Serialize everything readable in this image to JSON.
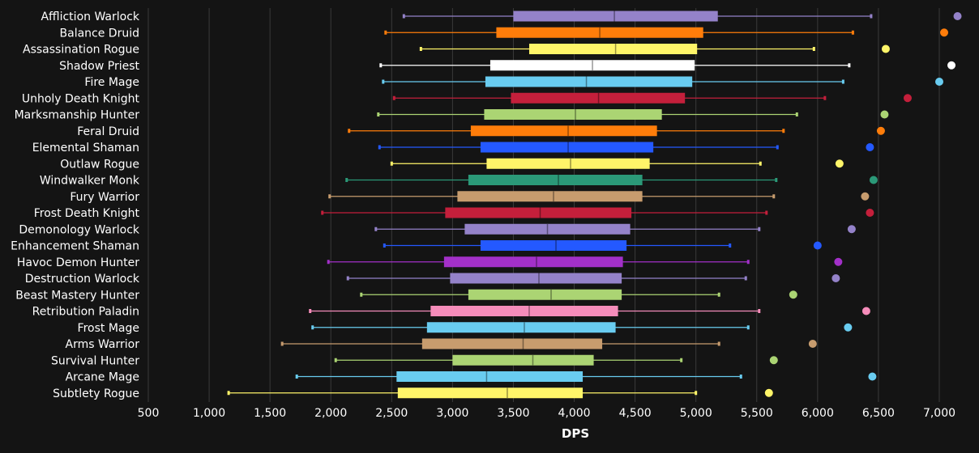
{
  "chart_data": {
    "type": "boxplot",
    "orientation": "horizontal",
    "xlabel": "DPS",
    "xlim": [
      500,
      7200
    ],
    "xticks": [
      500,
      1000,
      1500,
      2000,
      2500,
      3000,
      3500,
      4000,
      4500,
      5000,
      5500,
      6000,
      6500,
      7000
    ],
    "xtick_labels": [
      "500",
      "1,000",
      "1,500",
      "2,000",
      "2,500",
      "3,000",
      "3,500",
      "4,000",
      "4,500",
      "5,000",
      "5,500",
      "6,000",
      "6,500",
      "7,000"
    ],
    "grid": "vertical",
    "colors": {
      "background": "#141414",
      "grid": "#3a3a3a",
      "text": "#ffffff"
    },
    "series": [
      {
        "name": "Affliction Warlock",
        "color": "#9482C9",
        "min": 2600,
        "q1": 3500,
        "median": 4330,
        "q3": 5180,
        "max": 6440,
        "outlier": 7150
      },
      {
        "name": "Balance Druid",
        "color": "#FF7D0A",
        "min": 2450,
        "q1": 3360,
        "median": 4210,
        "q3": 5060,
        "max": 6290,
        "outlier": 7040
      },
      {
        "name": "Assassination Rogue",
        "color": "#FFF569",
        "min": 2740,
        "q1": 3630,
        "median": 4340,
        "q3": 5010,
        "max": 5970,
        "outlier": 6560
      },
      {
        "name": "Shadow Priest",
        "color": "#FFFFFF",
        "min": 2410,
        "q1": 3310,
        "median": 4150,
        "q3": 4990,
        "max": 6260,
        "outlier": 7100
      },
      {
        "name": "Fire Mage",
        "color": "#69CCF0",
        "min": 2430,
        "q1": 3270,
        "median": 4100,
        "q3": 4970,
        "max": 6210,
        "outlier": 7000
      },
      {
        "name": "Unholy Death Knight",
        "color": "#C41F3B",
        "min": 2520,
        "q1": 3480,
        "median": 4200,
        "q3": 4910,
        "max": 6060,
        "outlier": 6740
      },
      {
        "name": "Marksmanship Hunter",
        "color": "#ABD473",
        "min": 2390,
        "q1": 3260,
        "median": 4010,
        "q3": 4720,
        "max": 5830,
        "outlier": 6550
      },
      {
        "name": "Feral Druid",
        "color": "#FF7D0A",
        "min": 2150,
        "q1": 3150,
        "median": 3950,
        "q3": 4680,
        "max": 5720,
        "outlier": 6520
      },
      {
        "name": "Elemental Shaman",
        "color": "#2459FF",
        "min": 2400,
        "q1": 3230,
        "median": 3950,
        "q3": 4650,
        "max": 5670,
        "outlier": 6430
      },
      {
        "name": "Outlaw Rogue",
        "color": "#FFF569",
        "min": 2500,
        "q1": 3280,
        "median": 3970,
        "q3": 4620,
        "max": 5530,
        "outlier": 6180
      },
      {
        "name": "Windwalker Monk",
        "color": "#2B9978",
        "min": 2130,
        "q1": 3130,
        "median": 3870,
        "q3": 4560,
        "max": 5660,
        "outlier": 6460
      },
      {
        "name": "Fury Warrior",
        "color": "#C79C6E",
        "min": 1990,
        "q1": 3040,
        "median": 3830,
        "q3": 4560,
        "max": 5640,
        "outlier": 6390
      },
      {
        "name": "Frost Death Knight",
        "color": "#C41F3B",
        "min": 1930,
        "q1": 2940,
        "median": 3720,
        "q3": 4470,
        "max": 5580,
        "outlier": 6430
      },
      {
        "name": "Demonology Warlock",
        "color": "#9482C9",
        "min": 2370,
        "q1": 3100,
        "median": 3780,
        "q3": 4460,
        "max": 5520,
        "outlier": 6280
      },
      {
        "name": "Enhancement Shaman",
        "color": "#2459FF",
        "min": 2440,
        "q1": 3230,
        "median": 3850,
        "q3": 4430,
        "max": 5280,
        "outlier": 6000
      },
      {
        "name": "Havoc Demon Hunter",
        "color": "#A330C9",
        "min": 1980,
        "q1": 2930,
        "median": 3690,
        "q3": 4400,
        "max": 5430,
        "outlier": 6170
      },
      {
        "name": "Destruction Warlock",
        "color": "#9482C9",
        "min": 2140,
        "q1": 2980,
        "median": 3710,
        "q3": 4390,
        "max": 5410,
        "outlier": 6150
      },
      {
        "name": "Beast Mastery Hunter",
        "color": "#ABD473",
        "min": 2250,
        "q1": 3130,
        "median": 3810,
        "q3": 4390,
        "max": 5190,
        "outlier": 5800
      },
      {
        "name": "Retribution Paladin",
        "color": "#F58CBA",
        "min": 1830,
        "q1": 2820,
        "median": 3630,
        "q3": 4360,
        "max": 5520,
        "outlier": 6400
      },
      {
        "name": "Frost Mage",
        "color": "#69CCF0",
        "min": 1850,
        "q1": 2790,
        "median": 3590,
        "q3": 4340,
        "max": 5430,
        "outlier": 6250
      },
      {
        "name": "Arms Warrior",
        "color": "#C79C6E",
        "min": 1600,
        "q1": 2750,
        "median": 3580,
        "q3": 4230,
        "max": 5190,
        "outlier": 5960
      },
      {
        "name": "Survival Hunter",
        "color": "#ABD473",
        "min": 2040,
        "q1": 3000,
        "median": 3660,
        "q3": 4160,
        "max": 4880,
        "outlier": 5640
      },
      {
        "name": "Arcane Mage",
        "color": "#69CCF0",
        "min": 1720,
        "q1": 2540,
        "median": 3280,
        "q3": 4070,
        "max": 5370,
        "outlier": 6450
      },
      {
        "name": "Subtlety Rogue",
        "color": "#FFF569",
        "min": 1160,
        "q1": 2550,
        "median": 3450,
        "q3": 4070,
        "max": 5000,
        "outlier": 5600
      }
    ]
  }
}
